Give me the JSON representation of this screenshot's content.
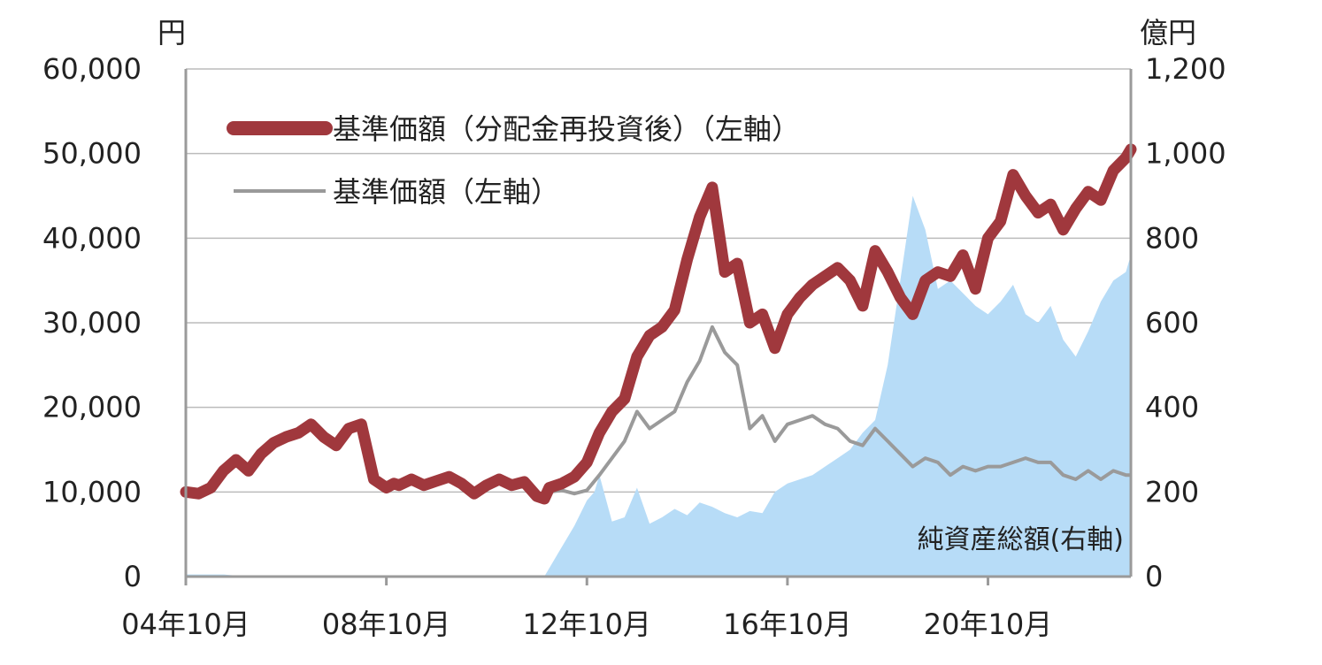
{
  "chart_data": {
    "type": "line",
    "left_unit": "円",
    "right_unit": "億円",
    "left_axis": {
      "min": 0,
      "max": 60000,
      "ticks": [
        "0",
        "10,000",
        "20,000",
        "30,000",
        "40,000",
        "50,000",
        "60,000"
      ]
    },
    "right_axis": {
      "min": 0,
      "max": 1200,
      "ticks": [
        "0",
        "200",
        "400",
        "600",
        "800",
        "1,000",
        "1,200"
      ]
    },
    "x_ticks": [
      "04年10月",
      "08年10月",
      "12年10月",
      "16年10月",
      "20年10月"
    ],
    "x_range": [
      2004.75,
      2023.6
    ],
    "grid": true,
    "legend": [
      {
        "label": "基準価額（分配金再投資後）（左軸）",
        "color": "#a0383d"
      },
      {
        "label": "基準価額（左軸）",
        "color": "#9a9a9a"
      }
    ],
    "area_label": "純資産総額(右軸)",
    "colors": {
      "reinvested": "#a0383d",
      "nav": "#9a9a9a",
      "assets": "#b7dcf7",
      "grid": "#bbbbbb"
    },
    "series": [
      {
        "name": "基準価額（分配金再投資後）（左軸）",
        "axis": "left",
        "x": [
          2004.75,
          2005.0,
          2005.25,
          2005.5,
          2005.75,
          2006.0,
          2006.25,
          2006.5,
          2006.75,
          2007.0,
          2007.25,
          2007.5,
          2007.75,
          2008.0,
          2008.25,
          2008.5,
          2008.75,
          2008.9,
          2009.0,
          2009.25,
          2009.5,
          2009.75,
          2010.0,
          2010.25,
          2010.5,
          2010.75,
          2011.0,
          2011.25,
          2011.5,
          2011.75,
          2011.9,
          2012.0,
          2012.25,
          2012.5,
          2012.75,
          2013.0,
          2013.25,
          2013.5,
          2013.75,
          2014.0,
          2014.25,
          2014.5,
          2014.75,
          2015.0,
          2015.25,
          2015.5,
          2015.75,
          2016.0,
          2016.25,
          2016.5,
          2016.75,
          2017.0,
          2017.25,
          2017.5,
          2017.75,
          2018.0,
          2018.25,
          2018.5,
          2018.75,
          2019.0,
          2019.25,
          2019.5,
          2019.75,
          2020.0,
          2020.25,
          2020.5,
          2020.75,
          2021.0,
          2021.25,
          2021.5,
          2021.75,
          2022.0,
          2022.25,
          2022.5,
          2022.75,
          2023.0,
          2023.25,
          2023.5,
          2023.6
        ],
        "values": [
          10000,
          9800,
          10500,
          12500,
          13800,
          12500,
          14500,
          15800,
          16500,
          17000,
          18000,
          16500,
          15500,
          17500,
          18000,
          11500,
          10500,
          11000,
          10800,
          11500,
          10800,
          11300,
          11800,
          11000,
          9800,
          10800,
          11500,
          10800,
          11200,
          9500,
          9200,
          10500,
          11000,
          11800,
          13500,
          17000,
          19500,
          21000,
          26000,
          28500,
          29500,
          31500,
          37500,
          42500,
          46000,
          36000,
          37000,
          30000,
          31000,
          27000,
          31000,
          33000,
          34500,
          35500,
          36500,
          35000,
          32000,
          38500,
          36000,
          33000,
          31000,
          35000,
          36000,
          35500,
          38000,
          34000,
          40000,
          42000,
          47500,
          45000,
          43000,
          44000,
          41000,
          43500,
          45500,
          44500,
          48000,
          49500,
          50500
        ]
      },
      {
        "name": "基準価額（左軸）",
        "axis": "left",
        "x": [
          2004.75,
          2005.0,
          2005.25,
          2005.5,
          2005.75,
          2006.0,
          2006.25,
          2006.5,
          2006.75,
          2007.0,
          2007.25,
          2007.5,
          2007.75,
          2008.0,
          2008.25,
          2008.5,
          2008.75,
          2008.9,
          2009.0,
          2009.25,
          2009.5,
          2009.75,
          2010.0,
          2010.25,
          2010.5,
          2010.75,
          2011.0,
          2011.25,
          2011.5,
          2011.75,
          2011.9,
          2012.0,
          2012.25,
          2012.5,
          2012.75,
          2013.0,
          2013.25,
          2013.5,
          2013.75,
          2014.0,
          2014.25,
          2014.5,
          2014.75,
          2015.0,
          2015.25,
          2015.5,
          2015.75,
          2016.0,
          2016.25,
          2016.5,
          2016.75,
          2017.0,
          2017.25,
          2017.5,
          2017.75,
          2018.0,
          2018.25,
          2018.5,
          2018.75,
          2019.0,
          2019.25,
          2019.5,
          2019.75,
          2020.0,
          2020.25,
          2020.5,
          2020.75,
          2021.0,
          2021.25,
          2021.5,
          2021.75,
          2022.0,
          2022.25,
          2022.5,
          2022.75,
          2023.0,
          2023.25,
          2023.5,
          2023.6
        ],
        "values": [
          10000,
          9800,
          10500,
          12500,
          13800,
          12500,
          14500,
          15800,
          16500,
          17000,
          18000,
          16500,
          15500,
          17500,
          18000,
          11500,
          10500,
          11000,
          10800,
          11500,
          10800,
          11300,
          11800,
          11000,
          9800,
          10800,
          11500,
          10800,
          11200,
          9500,
          9200,
          10000,
          10200,
          9800,
          10200,
          12000,
          14000,
          16000,
          19500,
          17500,
          18500,
          19500,
          23000,
          25500,
          29500,
          26500,
          25000,
          17500,
          19000,
          16000,
          18000,
          18500,
          19000,
          18000,
          17500,
          16000,
          15500,
          17500,
          16000,
          14500,
          13000,
          14000,
          13500,
          12000,
          13000,
          12500,
          13000,
          13000,
          13500,
          14000,
          13500,
          13500,
          12000,
          11500,
          12500,
          11500,
          12500,
          12000,
          12000
        ]
      },
      {
        "name": "純資産総額(右軸)",
        "axis": "right",
        "x": [
          2004.75,
          2005.5,
          2006.0,
          2011.9,
          2012.0,
          2012.25,
          2012.5,
          2012.75,
          2012.9,
          2013.0,
          2013.25,
          2013.5,
          2013.75,
          2014.0,
          2014.25,
          2014.5,
          2014.75,
          2015.0,
          2015.25,
          2015.5,
          2015.75,
          2016.0,
          2016.25,
          2016.5,
          2016.75,
          2017.0,
          2017.25,
          2017.5,
          2017.75,
          2018.0,
          2018.25,
          2018.5,
          2018.75,
          2019.0,
          2019.25,
          2019.5,
          2019.75,
          2020.0,
          2020.25,
          2020.5,
          2020.75,
          2021.0,
          2021.25,
          2021.5,
          2021.75,
          2022.0,
          2022.25,
          2022.5,
          2022.75,
          2023.0,
          2023.25,
          2023.5,
          2023.6
        ],
        "values": [
          5,
          5,
          0,
          0,
          20,
          70,
          120,
          180,
          200,
          240,
          130,
          140,
          210,
          125,
          140,
          160,
          145,
          175,
          165,
          150,
          140,
          155,
          150,
          200,
          220,
          230,
          240,
          260,
          280,
          300,
          340,
          370,
          500,
          700,
          900,
          820,
          680,
          700,
          670,
          640,
          620,
          650,
          690,
          620,
          600,
          640,
          560,
          520,
          580,
          650,
          700,
          720,
          760
        ]
      }
    ]
  }
}
